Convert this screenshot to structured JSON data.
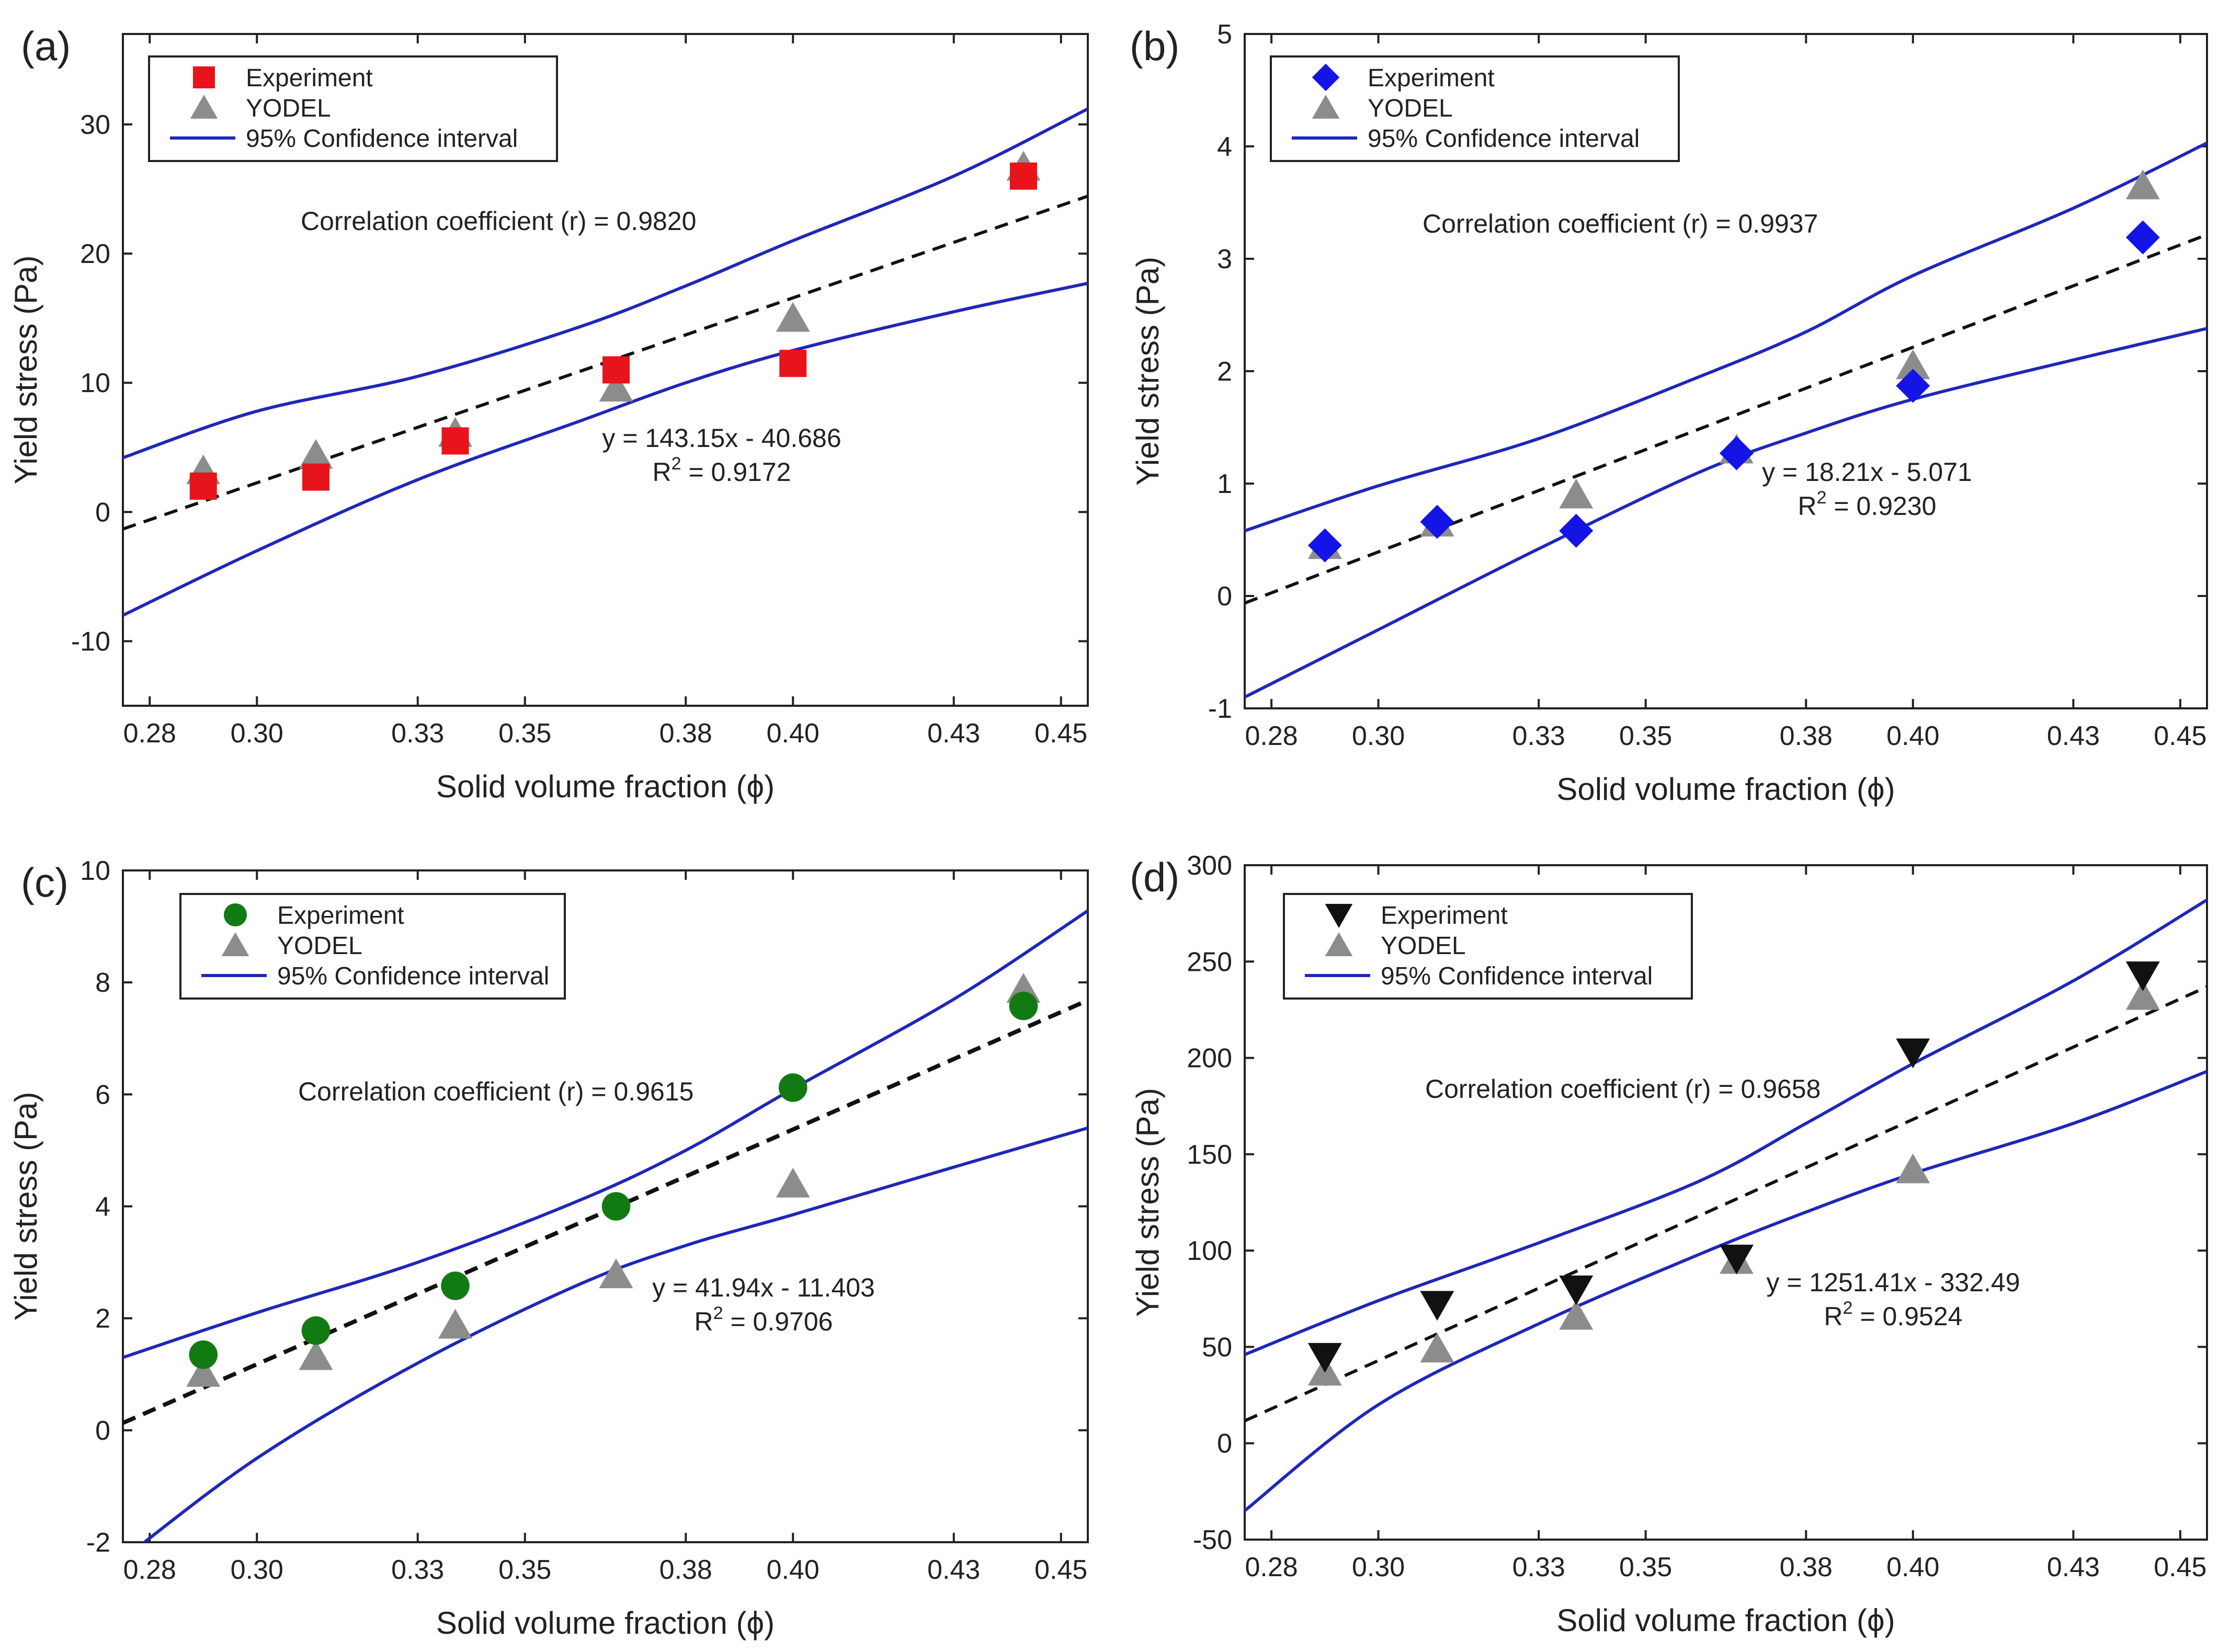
{
  "chart_data": [
    {
      "type": "scatter",
      "panel_label": "(a)",
      "xlabel": "Solid volume fraction (ϕ)",
      "ylabel": "Yield stress (Pa)",
      "xlim": [
        0.275,
        0.455
      ],
      "ylim": [
        -15,
        37
      ],
      "xticks": [
        0.28,
        0.3,
        0.33,
        0.35,
        0.38,
        0.4,
        0.43,
        0.45
      ],
      "xtick_labels": [
        "0.28",
        "0.30",
        "0.33",
        "0.35",
        "0.38",
        "0.40",
        "0.43",
        "0.45"
      ],
      "yticks": [
        -10,
        0,
        10,
        20,
        30
      ],
      "ytick_labels": [
        "-10",
        "0",
        "10",
        "20",
        "30"
      ],
      "series": [
        {
          "name": "Experiment",
          "marker": "square",
          "color": "#e8141b",
          "x": [
            0.29,
            0.311,
            0.337,
            0.367,
            0.4,
            0.443
          ],
          "y": [
            2.0,
            2.7,
            5.5,
            11.0,
            11.5,
            26.0
          ]
        },
        {
          "name": "YODEL",
          "marker": "triangle-up",
          "color": "#8c8c8c",
          "x": [
            0.29,
            0.311,
            0.337,
            0.367,
            0.4,
            0.443
          ],
          "y": [
            3.2,
            4.4,
            6.1,
            9.6,
            15.0,
            26.7
          ]
        }
      ],
      "fit": {
        "slope": 143.15,
        "intercept": -40.686,
        "equation": "y = 143.15x - 40.686",
        "r2_label": "R",
        "r2_sup": "2",
        "r2_value": " = 0.9172"
      },
      "ci_upper": {
        "x": [
          0.275,
          0.3,
          0.33,
          0.36,
          0.38,
          0.4,
          0.43,
          0.455
        ],
        "y": [
          4.2,
          7.8,
          10.5,
          14.3,
          17.5,
          21.0,
          26.0,
          31.2
        ]
      },
      "ci_lower": {
        "x": [
          0.275,
          0.3,
          0.33,
          0.36,
          0.38,
          0.4,
          0.43,
          0.455
        ],
        "y": [
          -8.0,
          -3.0,
          2.5,
          7.0,
          10.0,
          12.5,
          15.5,
          17.7
        ]
      },
      "correlation_text": "Correlation coefficient (r) = 0.9820",
      "legend": [
        "Experiment",
        "YODEL",
        "95% Confidence interval"
      ]
    },
    {
      "type": "scatter",
      "panel_label": "(b)",
      "xlabel": "Solid volume fraction (ϕ)",
      "ylabel": "Yield stress (Pa)",
      "xlim": [
        0.275,
        0.455
      ],
      "ylim": [
        -1,
        5
      ],
      "xticks": [
        0.28,
        0.3,
        0.33,
        0.35,
        0.38,
        0.4,
        0.43,
        0.45
      ],
      "xtick_labels": [
        "0.28",
        "0.30",
        "0.33",
        "0.35",
        "0.38",
        "0.40",
        "0.43",
        "0.45"
      ],
      "yticks": [
        -1,
        0,
        1,
        2,
        3,
        4,
        5
      ],
      "ytick_labels": [
        "-1",
        "0",
        "1",
        "2",
        "3",
        "4",
        "5"
      ],
      "series": [
        {
          "name": "Experiment",
          "marker": "diamond",
          "color": "#1414e6",
          "x": [
            0.29,
            0.311,
            0.337,
            0.367,
            0.4,
            0.443
          ],
          "y": [
            0.45,
            0.66,
            0.58,
            1.27,
            1.87,
            3.19
          ]
        },
        {
          "name": "YODEL",
          "marker": "triangle-up",
          "color": "#8c8c8c",
          "x": [
            0.29,
            0.311,
            0.337,
            0.367,
            0.4,
            0.443
          ],
          "y": [
            0.45,
            0.65,
            0.9,
            1.3,
            2.05,
            3.65
          ]
        }
      ],
      "fit": {
        "slope": 18.21,
        "intercept": -5.071,
        "equation": "y = 18.21x - 5.071",
        "r2_label": "R",
        "r2_sup": "2",
        "r2_value": " = 0.9230"
      },
      "ci_upper": {
        "x": [
          0.275,
          0.3,
          0.33,
          0.36,
          0.38,
          0.4,
          0.43,
          0.455
        ],
        "y": [
          0.58,
          0.98,
          1.4,
          1.95,
          2.35,
          2.85,
          3.45,
          4.03
        ]
      },
      "ci_lower": {
        "x": [
          0.275,
          0.3,
          0.33,
          0.36,
          0.38,
          0.4,
          0.43,
          0.455
        ],
        "y": [
          -0.9,
          -0.3,
          0.42,
          1.1,
          1.45,
          1.75,
          2.1,
          2.38
        ]
      },
      "correlation_text": "Correlation coefficient (r) = 0.9937",
      "legend": [
        "Experiment",
        "YODEL",
        "95% Confidence interval"
      ]
    },
    {
      "type": "scatter",
      "panel_label": "(c)",
      "xlabel": "Solid volume fraction (ϕ)",
      "ylabel": "Yield stress (Pa)",
      "xlim": [
        0.275,
        0.455
      ],
      "ylim": [
        -2,
        10
      ],
      "xticks": [
        0.28,
        0.3,
        0.33,
        0.35,
        0.38,
        0.4,
        0.43,
        0.45
      ],
      "xtick_labels": [
        "0.28",
        "0.30",
        "0.33",
        "0.35",
        "0.38",
        "0.40",
        "0.43",
        "0.45"
      ],
      "yticks": [
        -2,
        0,
        2,
        4,
        6,
        8,
        10
      ],
      "ytick_labels": [
        "-2",
        "0",
        "2",
        "4",
        "6",
        "8",
        "10"
      ],
      "series": [
        {
          "name": "Experiment",
          "marker": "circle",
          "color": "#127a12",
          "x": [
            0.29,
            0.311,
            0.337,
            0.367,
            0.4,
            0.443
          ],
          "y": [
            1.35,
            1.78,
            2.58,
            4.0,
            6.12,
            7.58
          ]
        },
        {
          "name": "YODEL",
          "marker": "triangle-up",
          "color": "#8c8c8c",
          "x": [
            0.29,
            0.311,
            0.337,
            0.367,
            0.4,
            0.443
          ],
          "y": [
            1.02,
            1.32,
            1.88,
            2.78,
            4.4,
            7.88
          ]
        }
      ],
      "fit": {
        "slope": 41.94,
        "intercept": -11.403,
        "equation": "y = 41.94x - 11.403",
        "r2_label": "R",
        "r2_sup": "2",
        "r2_value": " = 0.9706"
      },
      "ci_upper": {
        "x": [
          0.275,
          0.3,
          0.33,
          0.36,
          0.38,
          0.4,
          0.43,
          0.455
        ],
        "y": [
          1.3,
          2.1,
          3.0,
          4.1,
          5.0,
          6.1,
          7.7,
          9.28
        ]
      },
      "ci_lower": {
        "x": [
          0.275,
          0.3,
          0.33,
          0.36,
          0.38,
          0.4,
          0.43,
          0.455
        ],
        "y": [
          -2.3,
          -0.5,
          1.2,
          2.6,
          3.3,
          3.85,
          4.7,
          5.4
        ]
      },
      "correlation_text": "Correlation coefficient (r) = 0.9615",
      "legend": [
        "Experiment",
        "YODEL",
        "95% Confidence interval"
      ]
    },
    {
      "type": "scatter",
      "panel_label": "(d)",
      "xlabel": "Solid volume fraction (ϕ)",
      "ylabel": "Yield stress (Pa)",
      "xlim": [
        0.275,
        0.455
      ],
      "ylim": [
        -50,
        300
      ],
      "xticks": [
        0.28,
        0.3,
        0.33,
        0.35,
        0.38,
        0.4,
        0.43,
        0.45
      ],
      "xtick_labels": [
        "0.28",
        "0.30",
        "0.33",
        "0.35",
        "0.38",
        "0.40",
        "0.43",
        "0.45"
      ],
      "yticks": [
        -50,
        0,
        50,
        100,
        150,
        200,
        250,
        300
      ],
      "ytick_labels": [
        "-50",
        "0",
        "50",
        "100",
        "150",
        "200",
        "250",
        "300"
      ],
      "series": [
        {
          "name": "Experiment",
          "marker": "triangle-down",
          "color": "#111111",
          "x": [
            0.29,
            0.311,
            0.337,
            0.367,
            0.4,
            0.443
          ],
          "y": [
            45,
            72,
            80,
            96,
            203,
            243
          ]
        },
        {
          "name": "YODEL",
          "marker": "triangle-up",
          "color": "#8c8c8c",
          "x": [
            0.29,
            0.311,
            0.337,
            0.367,
            0.4,
            0.443
          ],
          "y": [
            37,
            49,
            66,
            95,
            142,
            232
          ]
        }
      ],
      "fit": {
        "slope": 1251.41,
        "intercept": -332.49,
        "equation": "y = 1251.41x - 332.49",
        "r2_label": "R",
        "r2_sup": "2",
        "r2_value": " = 0.9524"
      },
      "ci_upper": {
        "x": [
          0.275,
          0.3,
          0.33,
          0.36,
          0.38,
          0.4,
          0.43,
          0.455
        ],
        "y": [
          46,
          74,
          104,
          136,
          166,
          197,
          240,
          282
        ]
      },
      "ci_lower": {
        "x": [
          0.275,
          0.3,
          0.33,
          0.36,
          0.38,
          0.4,
          0.43,
          0.455
        ],
        "y": [
          -35,
          20,
          62,
          98,
          120,
          140,
          166,
          193
        ]
      },
      "correlation_text": "Correlation coefficient (r) = 0.9658",
      "legend": [
        "Experiment",
        "YODEL",
        "95% Confidence interval"
      ]
    }
  ]
}
